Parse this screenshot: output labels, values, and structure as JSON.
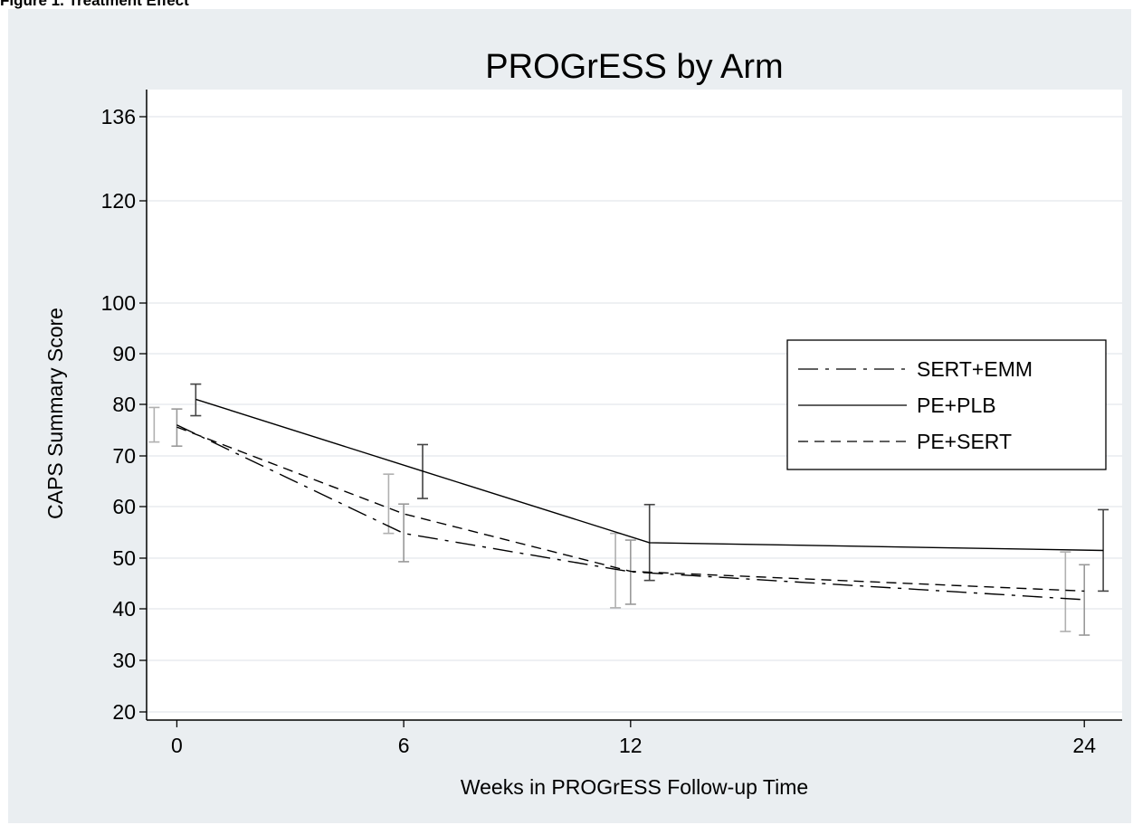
{
  "page": {
    "heading": "Figure 1. Treatment Effect"
  },
  "chart_data": {
    "type": "line",
    "title": "PROGrESS by Arm",
    "xlabel": "Weeks in PROGrESS Follow-up Time",
    "ylabel": "CAPS Summary Score",
    "x_ticks": [
      0,
      6,
      12,
      24
    ],
    "y_ticks": [
      20,
      30,
      40,
      50,
      60,
      70,
      80,
      90,
      100,
      120,
      136
    ],
    "xlim": [
      -0.8,
      25.0
    ],
    "grid": true,
    "legend_position": "right",
    "series": [
      {
        "name": "SERT+EMM",
        "line_style": "long-dash-dot",
        "x": [
          0,
          6,
          12,
          24
        ],
        "y": [
          76,
          54.8,
          47.3,
          41.8
        ],
        "error_x": [
          -0.6,
          5.6,
          11.6,
          23.5
        ],
        "error_low": [
          72.7,
          54.8,
          40.2,
          35.6
        ],
        "error_high": [
          79.4,
          66.4,
          54.8,
          51.2
        ],
        "error_color": "#b0b0b0"
      },
      {
        "name": "PE+PLB",
        "line_style": "solid",
        "x": [
          0.5,
          6.5,
          12.5,
          24.5
        ],
        "y": [
          81,
          67,
          53,
          51.5
        ],
        "error_x": [
          0.5,
          6.5,
          12.5,
          24.5
        ],
        "error_low": [
          77.8,
          61.6,
          45.6,
          43.5
        ],
        "error_high": [
          84.0,
          72.2,
          60.4,
          59.4
        ],
        "error_color": "#444444"
      },
      {
        "name": "PE+SERT",
        "line_style": "short-dash",
        "x": [
          0,
          6,
          12,
          24
        ],
        "y": [
          75.6,
          58.6,
          47.4,
          43.5
        ],
        "error_x": [
          0,
          6,
          12,
          24
        ],
        "error_low": [
          71.9,
          49.3,
          40.9,
          34.9
        ],
        "error_high": [
          79.1,
          60.5,
          53.5,
          48.7
        ],
        "error_color": "#999999"
      }
    ],
    "colors": {
      "figure_background": "#eaeef1",
      "plot_background": "#ffffff",
      "gridline": "#e4e8ec",
      "line": "#000000"
    }
  }
}
